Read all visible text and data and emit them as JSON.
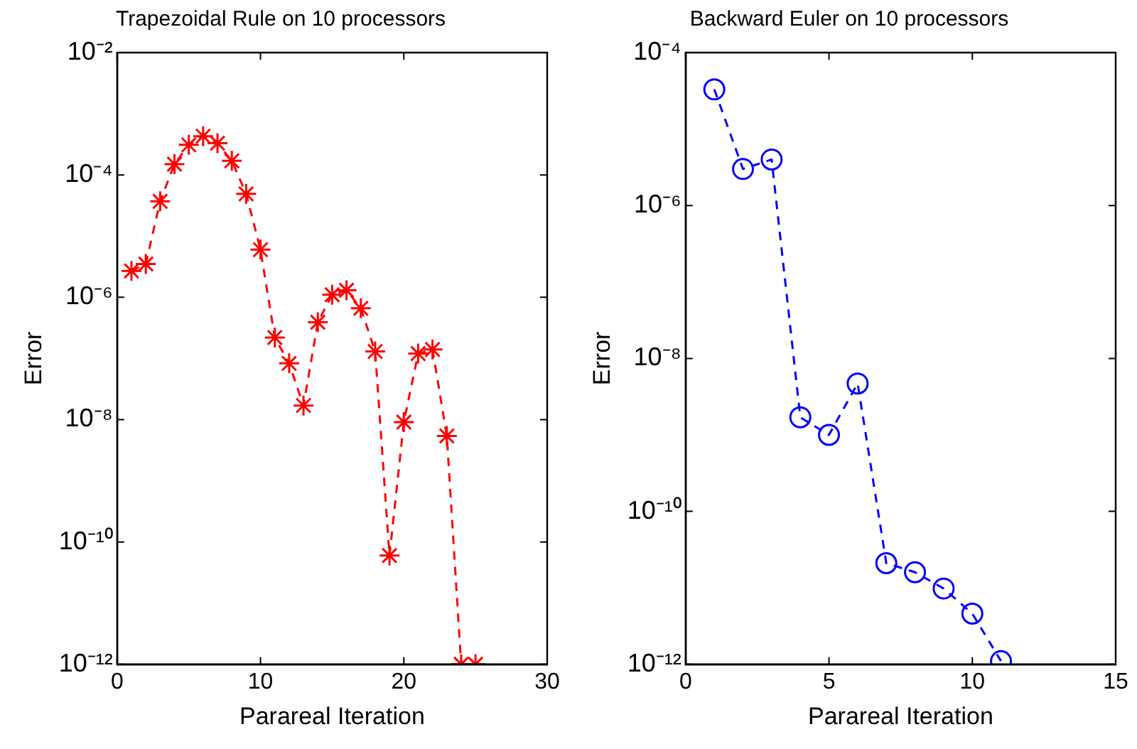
{
  "chart_data": [
    {
      "type": "line",
      "title": "Trapezoidal Rule on 10 processors",
      "xlabel": "Parareal Iteration",
      "ylabel": "Error",
      "log": "y",
      "marker": "cross",
      "line_style": "dashed",
      "grid": false,
      "legend": false,
      "x": [
        1,
        2,
        3,
        4,
        5,
        6,
        7,
        8,
        9,
        10,
        11,
        12,
        13,
        14,
        15,
        16,
        17,
        18,
        19,
        20,
        21,
        22,
        23,
        24,
        25
      ],
      "series": [
        {
          "color": "#ff0000",
          "values": [
            2.7e-06,
            3.5e-06,
            3.7e-05,
            0.00015,
            0.00031,
            0.00043,
            0.00033,
            0.00017,
            4.9e-05,
            6e-06,
            2.2e-07,
            8.3e-08,
            1.7e-08,
            3.9e-07,
            1.1e-06,
            1.3e-06,
            6.6e-07,
            1.3e-07,
            6e-11,
            9.1e-09,
            1.2e-07,
            1.4e-07,
            5.4e-09,
            1e-12,
            1e-12
          ]
        }
      ],
      "xlim": [
        0,
        30
      ],
      "xticks": [
        0,
        10,
        20,
        30
      ],
      "ylim": [
        1e-12,
        0.01
      ],
      "yticks": [
        {
          "value": 1e-12,
          "label": "10⁻¹²"
        },
        {
          "value": 1e-10,
          "label": "10⁻¹⁰"
        },
        {
          "value": 1e-08,
          "label": "10⁻⁸"
        },
        {
          "value": 1e-06,
          "label": "10⁻⁶"
        },
        {
          "value": 0.0001,
          "label": "10⁻⁴"
        },
        {
          "value": 0.01,
          "label": "10⁻²"
        }
      ]
    },
    {
      "type": "line",
      "title": "Backward Euler on 10 processors",
      "xlabel": "Parareal Iteration",
      "ylabel": "Error",
      "log": "y",
      "marker": "circle",
      "line_style": "dashed",
      "grid": false,
      "legend": false,
      "x": [
        1,
        2,
        3,
        4,
        5,
        6,
        7,
        8,
        9,
        10,
        11
      ],
      "series": [
        {
          "color": "#0000ff",
          "values": [
            3.3e-05,
            3e-06,
            4e-06,
            1.7e-09,
            1e-09,
            4.7e-09,
            2.1e-11,
            1.6e-11,
            9.8e-12,
            4.6e-12,
            1.1e-12
          ]
        }
      ],
      "xlim": [
        0,
        15
      ],
      "xticks": [
        0,
        5,
        10,
        15
      ],
      "ylim": [
        1e-12,
        0.0001
      ],
      "yticks": [
        {
          "value": 1e-12,
          "label": "10⁻¹²"
        },
        {
          "value": 1e-10,
          "label": "10⁻¹⁰"
        },
        {
          "value": 1e-08,
          "label": "10⁻⁸"
        },
        {
          "value": 1e-06,
          "label": "10⁻⁶"
        },
        {
          "value": 0.0001,
          "label": "10⁻⁴"
        }
      ]
    }
  ]
}
